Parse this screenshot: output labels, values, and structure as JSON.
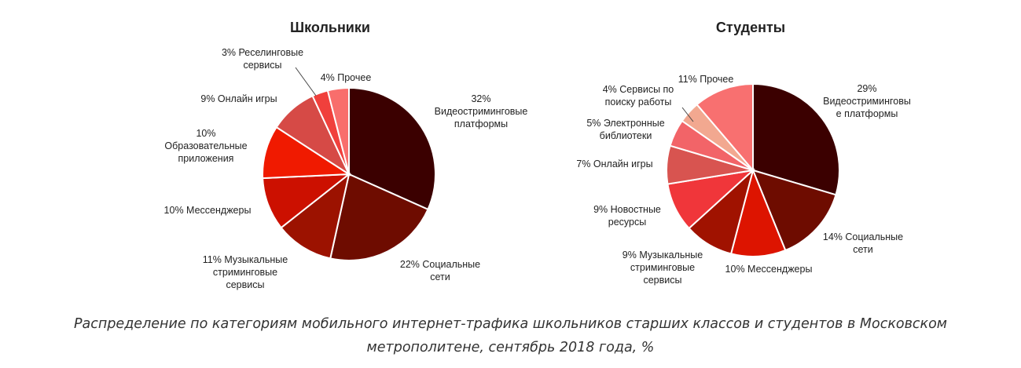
{
  "chart_data": [
    {
      "type": "pie",
      "title": "Школьники",
      "slices": [
        {
          "label": [
            "32%",
            "Видеостриминговые",
            "платформы"
          ],
          "value": 32,
          "color": "#3b0000"
        },
        {
          "label": [
            "22% Социальные",
            "сети"
          ],
          "value": 22,
          "color": "#6e0c00"
        },
        {
          "label": [
            "11% Музыкальные",
            "стриминговые",
            "сервисы"
          ],
          "value": 11,
          "color": "#9c1200"
        },
        {
          "label": [
            "10% Мессенджеры"
          ],
          "value": 10,
          "color": "#cc1000"
        },
        {
          "label": [
            "10%",
            "Образовательные",
            "приложения"
          ],
          "value": 10,
          "color": "#f01a00"
        },
        {
          "label": [
            "9% Онлайн игры"
          ],
          "value": 9,
          "color": "#d64a46"
        },
        {
          "label": [
            "3% Реселинговые",
            "сервисы"
          ],
          "value": 3,
          "color": "#f0403c"
        },
        {
          "label": [
            "4% Прочее"
          ],
          "value": 4,
          "color": "#f86e6c"
        }
      ]
    },
    {
      "type": "pie",
      "title": "Студенты",
      "slices": [
        {
          "label": [
            "29%",
            "Видеостриминговы",
            "е платформы"
          ],
          "value": 29,
          "color": "#3b0000"
        },
        {
          "label": [
            "14% Социальные",
            "сети"
          ],
          "value": 14,
          "color": "#6e0c00"
        },
        {
          "label": [
            "10%  Мессенджеры"
          ],
          "value": 10,
          "color": "#dd1400"
        },
        {
          "label": [
            "9% Музыкальные",
            "стриминговые",
            "сервисы"
          ],
          "value": 9,
          "color": "#a01200"
        },
        {
          "label": [
            "9% Новостные",
            "ресурсы"
          ],
          "value": 9,
          "color": "#f0363a"
        },
        {
          "label": [
            "7% Онлайн игры"
          ],
          "value": 7,
          "color": "#d85450"
        },
        {
          "label": [
            "5% Электронные",
            "библиотеки"
          ],
          "value": 5,
          "color": "#f26468"
        },
        {
          "label": [
            "4% Сервисы по",
            "поиску работы"
          ],
          "value": 4,
          "color": "#f2a890"
        },
        {
          "label": [
            "11% Прочее"
          ],
          "value": 11,
          "color": "#f87070"
        }
      ]
    }
  ],
  "caption": {
    "line1": "Распределение по категориям мобильного интернет-трафика школьников старших классов и студентов в Московском",
    "line2": "метрополитене, сентябрь 2018 года, %"
  }
}
